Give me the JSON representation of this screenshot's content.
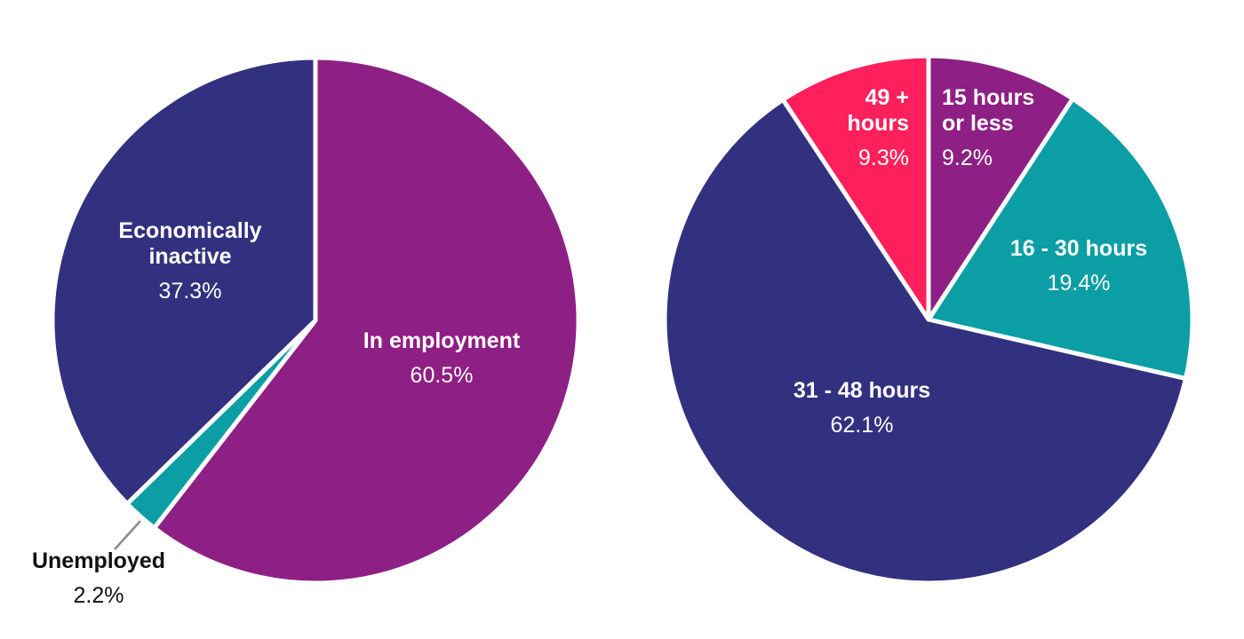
{
  "chart_data": [
    {
      "type": "pie",
      "title": "",
      "colors": {
        "border": "#ffffff",
        "dark_label": "#111111",
        "leader": "#8a8a8a"
      },
      "slices": [
        {
          "name": "In employment",
          "label_lines": [
            "In employment"
          ],
          "display_value": "60.5%",
          "value": 60.5,
          "color": "#8e1f84",
          "label_color": "#ffffff"
        },
        {
          "name": "Unemployed",
          "label_lines": [
            "Unemployed"
          ],
          "display_value": "2.2%",
          "value": 2.2,
          "color": "#0b9ea5",
          "label_color": "#111111"
        },
        {
          "name": "Economically inactive",
          "label_lines": [
            "Economically",
            "inactive"
          ],
          "display_value": "37.3%",
          "value": 37.3,
          "color": "#323180",
          "label_color": "#ffffff"
        }
      ]
    },
    {
      "type": "pie",
      "title": "",
      "colors": {
        "border": "#ffffff"
      },
      "slices": [
        {
          "name": "15 hours or less",
          "label_lines": [
            "15 hours",
            "or less"
          ],
          "display_value": "9.2%",
          "value": 9.2,
          "color": "#8e1f84",
          "label_color": "#ffffff"
        },
        {
          "name": "16-30 hours",
          "label_lines": [
            "16 - 30 hours"
          ],
          "display_value": "19.4%",
          "value": 19.4,
          "color": "#0b9ea5",
          "label_color": "#ffffff"
        },
        {
          "name": "31-48 hours",
          "label_lines": [
            "31 - 48 hours"
          ],
          "display_value": "62.1%",
          "value": 62.1,
          "color": "#323180",
          "label_color": "#ffffff"
        },
        {
          "name": "49+ hours",
          "label_lines": [
            "49 +",
            "hours"
          ],
          "display_value": "9.3%",
          "value": 9.3,
          "color": "#ff1f5a",
          "label_color": "#ffffff"
        }
      ]
    }
  ]
}
